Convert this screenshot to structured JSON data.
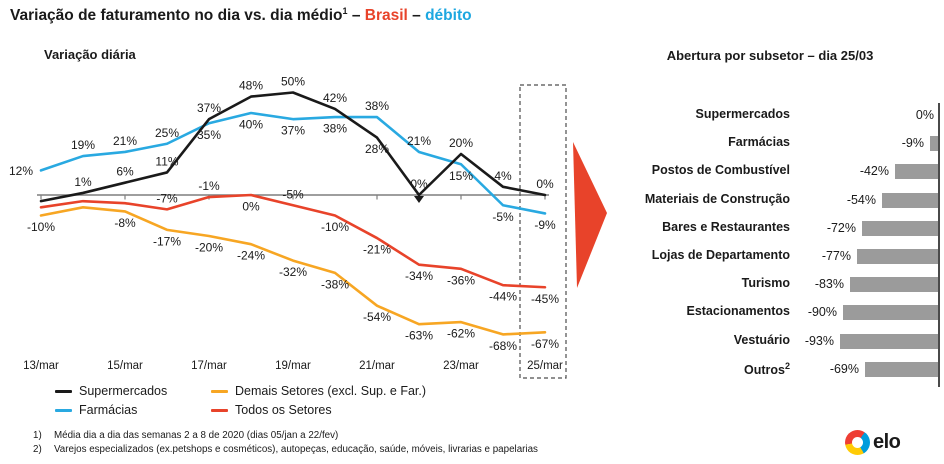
{
  "title": {
    "main": "Variação de faturamento no dia vs. dia médio",
    "sup": "1",
    "sep1": " – ",
    "region": "Brasil",
    "sep2": " – ",
    "product": "débito"
  },
  "left_panel": {
    "subtitle": "Variação diária"
  },
  "right_panel": {
    "title": "Abertura por subsetor – dia 25/03"
  },
  "legend": [
    {
      "label": "Supermercados",
      "color": "#1a1a1a"
    },
    {
      "label": "Demais Setores (excl. Sup. e Far.)",
      "color": "#f7a623"
    },
    {
      "label": "Farmácias",
      "color": "#29a9e1"
    },
    {
      "label": "Todos os Setores",
      "color": "#e8432a"
    }
  ],
  "footnotes": [
    {
      "num": "1)",
      "text": "Média dia a dia das semanas 2 a 8 de 2020 (dias 05/jan a 22/fev)"
    },
    {
      "num": "2)",
      "text": "Varejos especializados (ex.petshops e cosméticos), autopeças, educação, saúde, móveis, livrarias e papelarias"
    }
  ],
  "logo": {
    "text": "elo"
  },
  "colors": {
    "black": "#1a1a1a",
    "blue": "#29a9e1",
    "orange": "#f7a623",
    "red": "#e8432a",
    "axis": "#7f7f7f",
    "bar_gray": "#9b9b9b",
    "dashed_box": "#4d4d4d"
  },
  "chart_data": [
    {
      "type": "line",
      "title": "Variação diária",
      "unit": "%",
      "days": [
        13,
        14,
        15,
        16,
        17,
        18,
        19,
        20,
        21,
        22,
        23,
        24,
        25
      ],
      "x_tick_days": [
        13,
        15,
        17,
        19,
        21,
        23,
        25
      ],
      "x_tick_labels": [
        "13/mar",
        "15/mar",
        "17/mar",
        "19/mar",
        "21/mar",
        "23/mar",
        "25/mar"
      ],
      "highlight": {
        "day": 25,
        "style": "dashed-box"
      },
      "ylim": [
        -75,
        55
      ],
      "grid": false,
      "series": [
        {
          "name": "Supermercados",
          "color": "#1a1a1a",
          "values": [
            -3,
            1,
            6,
            11,
            37,
            48,
            50,
            42,
            28,
            0,
            20,
            4,
            0
          ],
          "labels": [
            null,
            "1%",
            "6%",
            "11%",
            "37%",
            "48%",
            "50%",
            "42%",
            "28%",
            "0%",
            "20%",
            "4%",
            "0%"
          ],
          "label_pos": [
            null,
            "above",
            "above",
            "above",
            "above",
            "above",
            "above",
            "above",
            "below",
            "above",
            "above",
            "above",
            "above"
          ],
          "marker_day": 22
        },
        {
          "name": "Farmácias",
          "color": "#29a9e1",
          "values": [
            12,
            19,
            21,
            25,
            35,
            40,
            37,
            38,
            38,
            21,
            15,
            -5,
            -9
          ],
          "labels": [
            "12%",
            "19%",
            "21%",
            "25%",
            "35%",
            "40%",
            "37%",
            "38%",
            "38%",
            "21%",
            "15%",
            "-5%",
            "-9%"
          ],
          "label_pos": [
            "left",
            "above",
            "above",
            "above",
            "below",
            "below",
            "below",
            "below",
            "above",
            "above",
            "below",
            "below",
            "below"
          ]
        },
        {
          "name": "Demais Setores (excl. Sup. e Far.)",
          "color": "#f7a623",
          "values": [
            -10,
            -6,
            -8,
            -17,
            -20,
            -24,
            -32,
            -38,
            -54,
            -63,
            -62,
            -68,
            -67
          ],
          "labels": [
            "-10%",
            null,
            "-8%",
            "-17%",
            "-20%",
            "-24%",
            "-32%",
            "-38%",
            "-54%",
            "-63%",
            "-62%",
            "-68%",
            "-67%"
          ],
          "label_pos": [
            "below",
            null,
            "below",
            "below",
            "below",
            "below",
            "below",
            "below",
            "below",
            "below",
            "below",
            "below",
            "below"
          ]
        },
        {
          "name": "Todos os Setores",
          "color": "#e8432a",
          "values": [
            -6,
            -3,
            -4,
            -7,
            -1,
            0,
            -5,
            -10,
            -21,
            -34,
            -36,
            -44,
            -45
          ],
          "labels": [
            null,
            null,
            null,
            "-7%",
            "-1%",
            "0%",
            "-5%",
            "-10%",
            "-21%",
            "-34%",
            "-36%",
            "-44%",
            "-45%"
          ],
          "label_pos": [
            null,
            null,
            null,
            "above",
            "above",
            "below",
            "above",
            "below",
            "below",
            "below",
            "below",
            "below",
            "below"
          ]
        }
      ]
    },
    {
      "type": "bar",
      "orientation": "horizontal",
      "baseline": "right",
      "title": "Abertura por subsetor – dia 25/03",
      "unit": "%",
      "bar_color": "#9b9b9b",
      "xlim": [
        -100,
        0
      ],
      "rows": [
        {
          "label": "Supermercados",
          "value": 0,
          "display": "0%"
        },
        {
          "label": "Farmácias",
          "value": -9,
          "display": "-9%"
        },
        {
          "label": "Postos de Combustível",
          "value": -42,
          "display": "-42%"
        },
        {
          "label": "Materiais de Construção",
          "value": -54,
          "display": "-54%"
        },
        {
          "label": "Bares e Restaurantes",
          "value": -72,
          "display": "-72%"
        },
        {
          "label": "Lojas de Departamento",
          "value": -77,
          "display": "-77%"
        },
        {
          "label": "Turismo",
          "value": -83,
          "display": "-83%"
        },
        {
          "label": "Estacionamentos",
          "value": -90,
          "display": "-90%"
        },
        {
          "label": "Vestuário",
          "value": -93,
          "display": "-93%"
        },
        {
          "label": "Outros",
          "sup": "2",
          "value": -69,
          "display": "-69%"
        }
      ]
    }
  ]
}
